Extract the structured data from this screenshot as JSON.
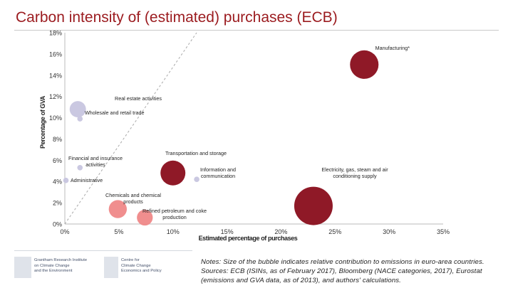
{
  "title": "Carbon intensity of (estimated) purchases (ECB)",
  "chart_data": {
    "type": "scatter",
    "subtype": "bubble",
    "xlabel": "Estimated percentage of purchases",
    "ylabel": "Percentage of GVA",
    "xlim": [
      0,
      35
    ],
    "ylim": [
      0,
      18
    ],
    "x_ticks": [
      "0%",
      "5%",
      "10%",
      "15%",
      "20%",
      "25%",
      "30%",
      "35%"
    ],
    "y_ticks": [
      "0%",
      "2%",
      "4%",
      "6%",
      "8%",
      "10%",
      "12%",
      "14%",
      "16%",
      "18%"
    ],
    "reference_line": "dashed diagonal",
    "points": [
      {
        "label": "Manufacturing*",
        "x": 27.7,
        "y": 15.0,
        "size": 0.55,
        "color": "#8b1220"
      },
      {
        "label": "Real estate activities",
        "x": 1.2,
        "y": 10.8,
        "size": 0.18,
        "color": "#c8c6e0"
      },
      {
        "label": "Wholesale and retail trade",
        "x": 1.4,
        "y": 9.9,
        "size": 0.02,
        "color": "#c8c6e0"
      },
      {
        "label": "Transportation and storage",
        "x": 10.0,
        "y": 4.8,
        "size": 0.42,
        "color": "#8b1220"
      },
      {
        "label": "Financial and insurance activities",
        "x": 1.4,
        "y": 5.3,
        "size": 0.02,
        "color": "#c8c6e0"
      },
      {
        "label": "Information and communication",
        "x": 12.2,
        "y": 4.2,
        "size": 0.02,
        "color": "#c8c6e0"
      },
      {
        "label": "Electricity, gas, steam and air conditioning supply",
        "x": 23.0,
        "y": 1.7,
        "size": 1.0,
        "color": "#8b1220"
      },
      {
        "label": "Administrative",
        "x": 0.1,
        "y": 4.1,
        "size": 0.02,
        "color": "#c8c6e0"
      },
      {
        "label": "Chemicals and chemical products",
        "x": 4.9,
        "y": 1.4,
        "size": 0.22,
        "color": "#f08a8a"
      },
      {
        "label": "Refined petroleum and coke production",
        "x": 7.4,
        "y": 0.6,
        "size": 0.17,
        "color": "#f08a8a"
      }
    ]
  },
  "notes": [
    "Notes: Size of the bubble indicates relative contribution to emissions in euro-area countries.",
    "Sources: ECB (ISINs, as of February 2017), Bloomberg (NACE categories, 2017), Eurostat",
    "(emissions and GVA data, as of 2013), and authors' calculations."
  ],
  "footer": {
    "logo1": "Grantham Research Institute\non Climate Change\nand the Environment",
    "logo2": "Centre for\nClimate Change\nEconomics and Policy"
  }
}
